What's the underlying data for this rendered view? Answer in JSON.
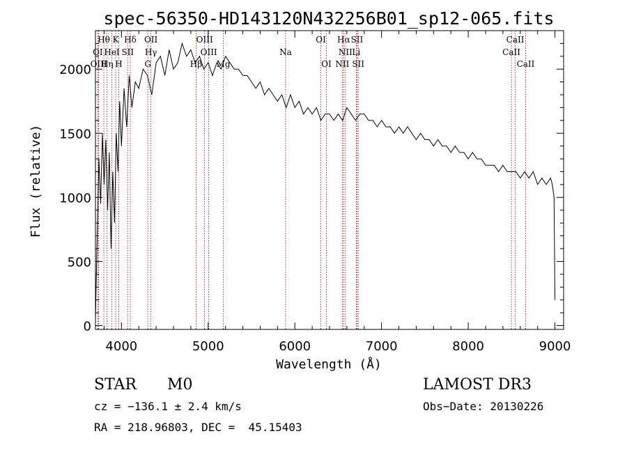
{
  "chart_data": {
    "type": "line",
    "title": "spec-56350-HD143120N432256B01_sp12-065.fits",
    "xlabel": "Wavelength (Å)",
    "ylabel": "Flux (relative)",
    "xlim": [
      3700,
      9100
    ],
    "ylim": [
      -30,
      2300
    ],
    "xticks": [
      4000,
      5000,
      6000,
      7000,
      8000,
      9000
    ],
    "yticks": [
      0,
      500,
      1000,
      1500,
      2000
    ],
    "grid": false,
    "line_color": "#000000",
    "marker_color": "#a00000",
    "spectral_lines": [
      {
        "label": "Hθ",
        "wavelength": 3797,
        "row": 1
      },
      {
        "label": "K",
        "wavelength": 3934,
        "row": 1
      },
      {
        "label": "Hδ",
        "wavelength": 4102,
        "row": 1
      },
      {
        "label": "OII",
        "wavelength": 4340,
        "row": 1
      },
      {
        "label": "OIII",
        "wavelength": 4959,
        "row": 1
      },
      {
        "label": "OI",
        "wavelength": 6300,
        "row": 1
      },
      {
        "label": "Hα",
        "wavelength": 6563,
        "row": 1
      },
      {
        "label": "SII",
        "wavelength": 6717,
        "row": 1
      },
      {
        "label": "CaII",
        "wavelength": 8542,
        "row": 1
      },
      {
        "label": "OI",
        "wavelength": 3727,
        "row": 2
      },
      {
        "label": "HeI",
        "wavelength": 3889,
        "row": 2
      },
      {
        "label": "SII",
        "wavelength": 4072,
        "row": 2
      },
      {
        "label": "Hγ",
        "wavelength": 4340,
        "row": 2
      },
      {
        "label": "OIII",
        "wavelength": 5007,
        "row": 2
      },
      {
        "label": "Na",
        "wavelength": 5893,
        "row": 2
      },
      {
        "label": "NII",
        "wavelength": 6584,
        "row": 2
      },
      {
        "label": "Li",
        "wavelength": 6708,
        "row": 2
      },
      {
        "label": "CaII",
        "wavelength": 8498,
        "row": 2
      },
      {
        "label": "OIII",
        "wavelength": 3737,
        "row": 3
      },
      {
        "label": "Hη",
        "wavelength": 3835,
        "row": 3
      },
      {
        "label": "H",
        "wavelength": 3969,
        "row": 3
      },
      {
        "label": "G",
        "wavelength": 4304,
        "row": 3
      },
      {
        "label": "Hβ",
        "wavelength": 4861,
        "row": 3
      },
      {
        "label": "Mg",
        "wavelength": 5175,
        "row": 3
      },
      {
        "label": "OI",
        "wavelength": 6364,
        "row": 3
      },
      {
        "label": "NII",
        "wavelength": 6548,
        "row": 3
      },
      {
        "label": "SII",
        "wavelength": 6731,
        "row": 3
      },
      {
        "label": "CaII",
        "wavelength": 8662,
        "row": 3
      }
    ],
    "series": [
      {
        "x": [
          3700,
          3720,
          3740,
          3760,
          3780,
          3800,
          3820,
          3840,
          3860,
          3880,
          3900,
          3920,
          3940,
          3960,
          3980,
          4000,
          4030,
          4060,
          4090,
          4120,
          4160,
          4200,
          4250,
          4300,
          4350,
          4400,
          4450,
          4500,
          4550,
          4600,
          4650,
          4700,
          4750,
          4800,
          4850,
          4900,
          4950,
          5000,
          5050,
          5100,
          5150,
          5200,
          5250,
          5300,
          5350,
          5400,
          5450,
          5500,
          5550,
          5600,
          5650,
          5700,
          5750,
          5800,
          5850,
          5900,
          5950,
          6000,
          6050,
          6100,
          6150,
          6200,
          6250,
          6300,
          6350,
          6400,
          6450,
          6500,
          6550,
          6600,
          6650,
          6700,
          6750,
          6800,
          6850,
          6900,
          6950,
          7000,
          7050,
          7100,
          7150,
          7200,
          7250,
          7300,
          7350,
          7400,
          7450,
          7500,
          7550,
          7600,
          7650,
          7700,
          7750,
          7800,
          7850,
          7900,
          7950,
          8000,
          8050,
          8100,
          8150,
          8200,
          8250,
          8300,
          8350,
          8400,
          8450,
          8500,
          8550,
          8600,
          8650,
          8700,
          8750,
          8800,
          8850,
          8900,
          8950,
          8970,
          8990,
          9000
        ],
        "y": [
          50,
          700,
          1300,
          950,
          1500,
          1100,
          1450,
          900,
          1350,
          600,
          1200,
          800,
          1500,
          1200,
          1750,
          1400,
          1850,
          1550,
          1950,
          1700,
          1900,
          1850,
          2000,
          1950,
          1800,
          2050,
          2100,
          1950,
          2150,
          2000,
          2050,
          2200,
          2100,
          2150,
          2050,
          2100,
          2000,
          2050,
          1950,
          2050,
          2000,
          2100,
          2050,
          2000,
          2000,
          1950,
          1950,
          1900,
          1850,
          1900,
          1800,
          1850,
          1800,
          1750,
          1800,
          1700,
          1800,
          1700,
          1750,
          1650,
          1700,
          1650,
          1700,
          1600,
          1650,
          1650,
          1600,
          1650,
          1600,
          1700,
          1650,
          1600,
          1650,
          1650,
          1600,
          1600,
          1550,
          1600,
          1550,
          1550,
          1500,
          1550,
          1500,
          1550,
          1500,
          1450,
          1500,
          1450,
          1450,
          1400,
          1450,
          1400,
          1400,
          1350,
          1400,
          1350,
          1350,
          1300,
          1350,
          1300,
          1300,
          1250,
          1250,
          1250,
          1200,
          1250,
          1200,
          1200,
          1200,
          1150,
          1200,
          1150,
          1200,
          1100,
          1150,
          1100,
          1150,
          1100,
          1000,
          200
        ]
      }
    ]
  },
  "info": {
    "star_type": "STAR",
    "subclass": "M0",
    "survey": "LAMOST DR3",
    "cz_text": "cz = −136.1 ± 2.4 km/s",
    "obs_date": "Obs−Date: 20130226",
    "coords": "RA = 218.96803, DEC =  45.15403"
  }
}
